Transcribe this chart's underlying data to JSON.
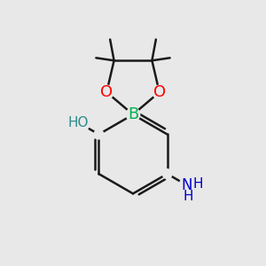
{
  "bg_color": "#e8e8e8",
  "bond_color": "#1a1a1a",
  "bond_width": 1.8,
  "B_color": "#00b050",
  "O_color": "#ff0000",
  "OH_color": "#2e8b8b",
  "N_color": "#0000cd",
  "figsize": [
    3.0,
    3.0
  ],
  "dpi": 100,
  "xlim": [
    0,
    10
  ],
  "ylim": [
    0,
    10
  ]
}
